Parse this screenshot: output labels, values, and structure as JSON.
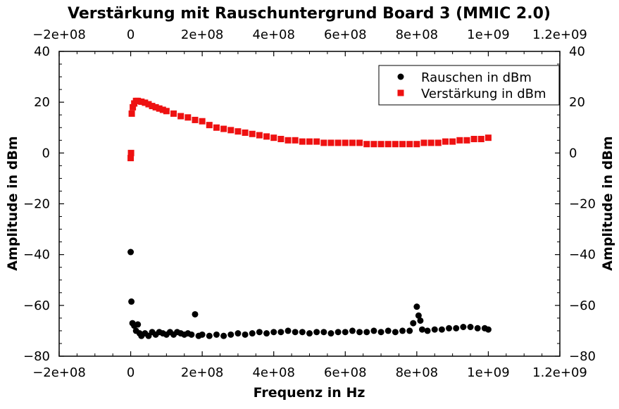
{
  "chart_data": {
    "type": "scatter",
    "title": "Verstärkung mit Rauschuntergrund Board 3 (MMIC 2.0)",
    "xlabel": "Frequenz in Hz",
    "ylabel": "Amplitude in dBm",
    "xlim": [
      -200000000,
      1200000000
    ],
    "ylim": [
      -80,
      40
    ],
    "x_ticks": [
      -200000000,
      0,
      200000000,
      400000000,
      600000000,
      800000000,
      1000000000,
      1200000000
    ],
    "x_tick_labels": [
      "−2e+08",
      "0",
      "2e+08",
      "4e+08",
      "6e+08",
      "8e+08",
      "1e+09",
      "1.2e+09"
    ],
    "y_ticks": [
      -80,
      -60,
      -40,
      -20,
      0,
      20,
      40
    ],
    "y_tick_labels": [
      "−80",
      "−60",
      "−40",
      "−20",
      "0",
      "20",
      "40"
    ],
    "grid": false,
    "legend_position": "top-right",
    "series": [
      {
        "name": "Rauschen in dBm",
        "color": "#000000",
        "marker": "circle",
        "points": [
          [
            0,
            -39
          ],
          [
            2000000,
            -58.5
          ],
          [
            5000000,
            -67
          ],
          [
            10000000,
            -68
          ],
          [
            15000000,
            -70
          ],
          [
            20000000,
            -67.5
          ],
          [
            25000000,
            -71
          ],
          [
            30000000,
            -72
          ],
          [
            40000000,
            -71
          ],
          [
            50000000,
            -72
          ],
          [
            60000000,
            -70.5
          ],
          [
            70000000,
            -71.5
          ],
          [
            80000000,
            -70.5
          ],
          [
            90000000,
            -71
          ],
          [
            100000000,
            -71.5
          ],
          [
            110000000,
            -70.5
          ],
          [
            120000000,
            -71.5
          ],
          [
            130000000,
            -70.5
          ],
          [
            140000000,
            -71
          ],
          [
            150000000,
            -71.5
          ],
          [
            160000000,
            -71
          ],
          [
            170000000,
            -71.5
          ],
          [
            180000000,
            -63.5
          ],
          [
            190000000,
            -72
          ],
          [
            200000000,
            -71.5
          ],
          [
            220000000,
            -72
          ],
          [
            240000000,
            -71.5
          ],
          [
            260000000,
            -72
          ],
          [
            280000000,
            -71.5
          ],
          [
            300000000,
            -71
          ],
          [
            320000000,
            -71.5
          ],
          [
            340000000,
            -71
          ],
          [
            360000000,
            -70.5
          ],
          [
            380000000,
            -71
          ],
          [
            400000000,
            -70.5
          ],
          [
            420000000,
            -70.5
          ],
          [
            440000000,
            -70
          ],
          [
            460000000,
            -70.5
          ],
          [
            480000000,
            -70.5
          ],
          [
            500000000,
            -71
          ],
          [
            520000000,
            -70.5
          ],
          [
            540000000,
            -70.5
          ],
          [
            560000000,
            -71
          ],
          [
            580000000,
            -70.5
          ],
          [
            600000000,
            -70.5
          ],
          [
            620000000,
            -70
          ],
          [
            640000000,
            -70.5
          ],
          [
            660000000,
            -70.5
          ],
          [
            680000000,
            -70
          ],
          [
            700000000,
            -70.5
          ],
          [
            720000000,
            -70
          ],
          [
            740000000,
            -70.5
          ],
          [
            760000000,
            -70
          ],
          [
            780000000,
            -70
          ],
          [
            790000000,
            -67
          ],
          [
            800000000,
            -60.5
          ],
          [
            805000000,
            -64
          ],
          [
            810000000,
            -66
          ],
          [
            815000000,
            -69.5
          ],
          [
            830000000,
            -70
          ],
          [
            850000000,
            -69.5
          ],
          [
            870000000,
            -69.5
          ],
          [
            890000000,
            -69
          ],
          [
            910000000,
            -69
          ],
          [
            930000000,
            -68.5
          ],
          [
            950000000,
            -68.5
          ],
          [
            970000000,
            -69
          ],
          [
            990000000,
            -69
          ],
          [
            1000000000,
            -69.5
          ]
        ]
      },
      {
        "name": "Verstärkung in dBm",
        "color": "#ee1111",
        "marker": "square",
        "points": [
          [
            0,
            -2
          ],
          [
            1000000,
            0
          ],
          [
            3000000,
            15.5
          ],
          [
            6000000,
            18
          ],
          [
            10000000,
            19.5
          ],
          [
            15000000,
            20.5
          ],
          [
            20000000,
            20.5
          ],
          [
            30000000,
            20.2
          ],
          [
            40000000,
            19.8
          ],
          [
            50000000,
            19.2
          ],
          [
            60000000,
            18.5
          ],
          [
            70000000,
            18
          ],
          [
            80000000,
            17.5
          ],
          [
            90000000,
            17
          ],
          [
            100000000,
            16.5
          ],
          [
            120000000,
            15.5
          ],
          [
            140000000,
            14.5
          ],
          [
            160000000,
            14
          ],
          [
            180000000,
            13
          ],
          [
            200000000,
            12.5
          ],
          [
            220000000,
            11
          ],
          [
            240000000,
            10
          ],
          [
            260000000,
            9.5
          ],
          [
            280000000,
            9
          ],
          [
            300000000,
            8.5
          ],
          [
            320000000,
            8
          ],
          [
            340000000,
            7.5
          ],
          [
            360000000,
            7
          ],
          [
            380000000,
            6.5
          ],
          [
            400000000,
            6
          ],
          [
            420000000,
            5.5
          ],
          [
            440000000,
            5
          ],
          [
            460000000,
            5
          ],
          [
            480000000,
            4.5
          ],
          [
            500000000,
            4.5
          ],
          [
            520000000,
            4.5
          ],
          [
            540000000,
            4
          ],
          [
            560000000,
            4
          ],
          [
            580000000,
            4
          ],
          [
            600000000,
            4
          ],
          [
            620000000,
            4
          ],
          [
            640000000,
            4
          ],
          [
            660000000,
            3.5
          ],
          [
            680000000,
            3.5
          ],
          [
            700000000,
            3.5
          ],
          [
            720000000,
            3.5
          ],
          [
            740000000,
            3.5
          ],
          [
            760000000,
            3.5
          ],
          [
            780000000,
            3.5
          ],
          [
            800000000,
            3.5
          ],
          [
            820000000,
            4
          ],
          [
            840000000,
            4
          ],
          [
            860000000,
            4
          ],
          [
            880000000,
            4.5
          ],
          [
            900000000,
            4.5
          ],
          [
            920000000,
            5
          ],
          [
            940000000,
            5
          ],
          [
            960000000,
            5.5
          ],
          [
            980000000,
            5.5
          ],
          [
            1000000000,
            6
          ]
        ]
      }
    ]
  }
}
